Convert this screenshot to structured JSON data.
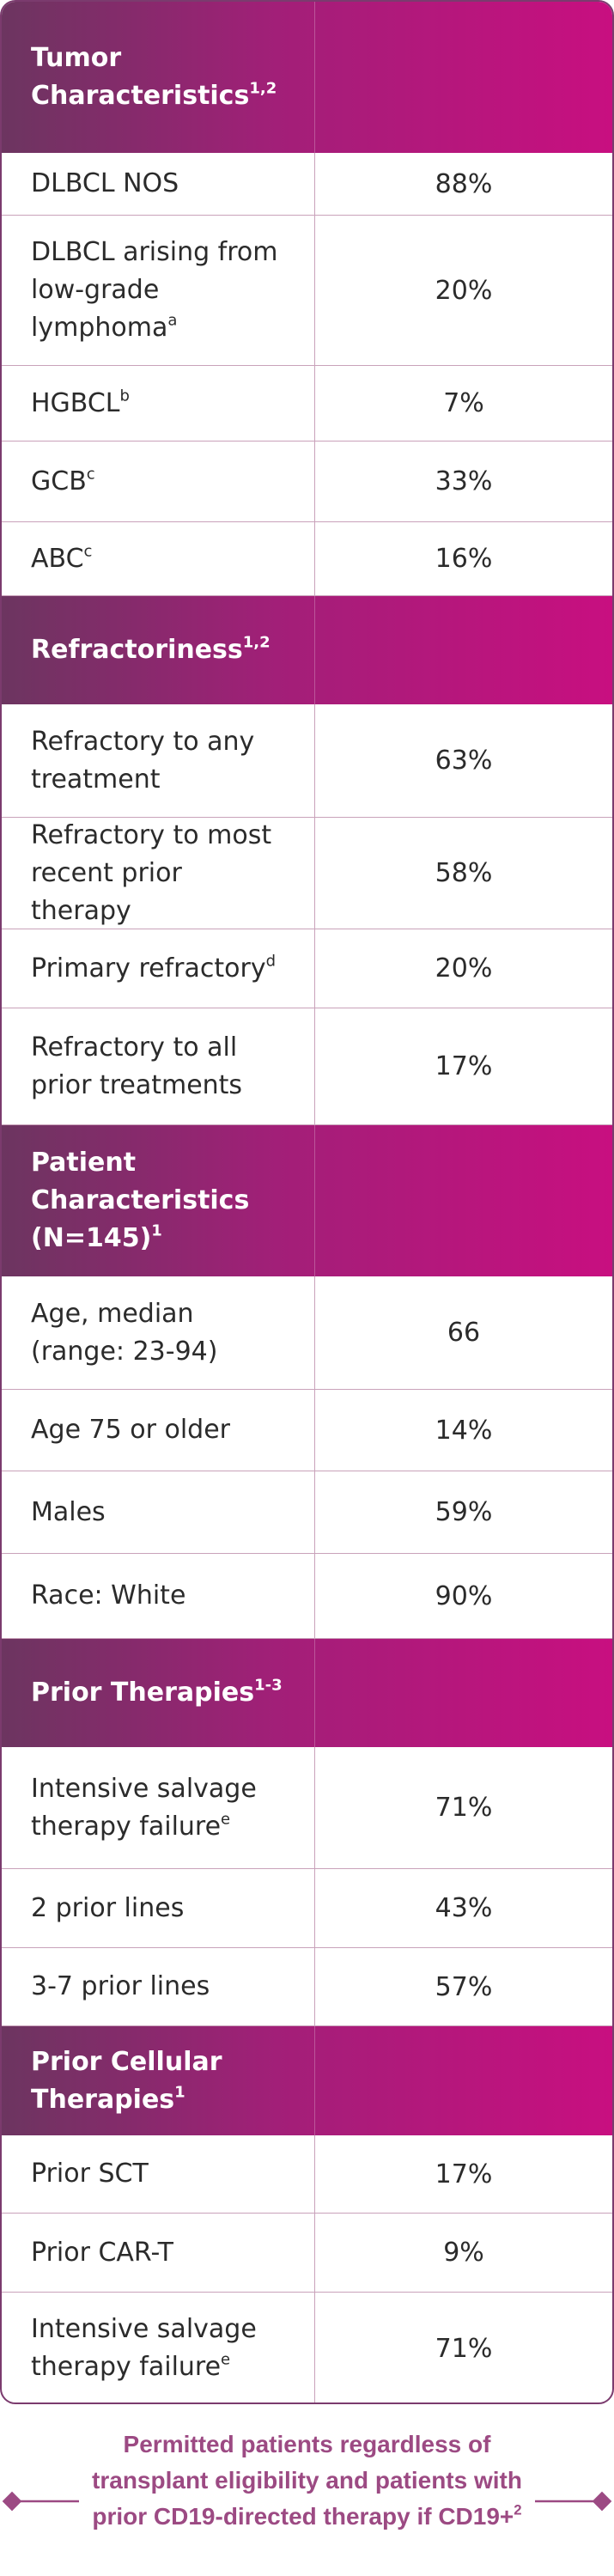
{
  "sections": [
    {
      "title": {
        "text": "Tumor Characteristics",
        "sup": "1,2"
      },
      "rows": [
        {
          "label": {
            "text": "DLBCL NOS"
          },
          "value": "88%"
        },
        {
          "label": {
            "text": "DLBCL arising from low-grade lymphoma",
            "sup": "a"
          },
          "value": "20%"
        },
        {
          "label": {
            "text": "HGBCL",
            "sup": "b"
          },
          "value": "7%"
        },
        {
          "label": {
            "text": "GCB",
            "sup": "c"
          },
          "value": "33%"
        },
        {
          "label": {
            "text": "ABC",
            "sup": "c"
          },
          "value": "16%"
        }
      ]
    },
    {
      "title": {
        "text": "Refractoriness",
        "sup": "1,2"
      },
      "rows": [
        {
          "label": {
            "text": "Refractory to any treatment"
          },
          "value": "63%"
        },
        {
          "label": {
            "text": "Refractory to most recent prior therapy"
          },
          "value": "58%"
        },
        {
          "label": {
            "text": "Primary refractory",
            "sup": "d"
          },
          "value": "20%"
        },
        {
          "label": {
            "text": "Refractory to all prior treatments"
          },
          "value": "17%"
        }
      ]
    },
    {
      "title": {
        "text": "Patient Characteristics (N=145)",
        "sup": "1"
      },
      "rows": [
        {
          "label": {
            "text": "Age, median (range: 23-94)"
          },
          "value": "66"
        },
        {
          "label": {
            "text": "Age 75 or older"
          },
          "value": "14%"
        },
        {
          "label": {
            "text": "Males"
          },
          "value": "59%"
        },
        {
          "label": {
            "text": "Race: White"
          },
          "value": "90%"
        }
      ]
    },
    {
      "title": {
        "text": "Prior Therapies",
        "sup": "1-3"
      },
      "rows": [
        {
          "label": {
            "text": "Intensive salvage therapy failure",
            "sup": "e"
          },
          "value": "71%"
        },
        {
          "label": {
            "text": "2 prior lines"
          },
          "value": "43%"
        },
        {
          "label": {
            "text": "3-7 prior lines"
          },
          "value": "57%"
        }
      ]
    },
    {
      "title": {
        "text": "Prior Cellular Therapies",
        "sup": "1"
      },
      "rows": [
        {
          "label": {
            "text": "Prior SCT"
          },
          "value": "17%"
        },
        {
          "label": {
            "text": "Prior CAR-T"
          },
          "value": "9%"
        },
        {
          "label": {
            "text": "Intensive salvage therapy failure",
            "sup": "e"
          },
          "value": "71%"
        }
      ]
    }
  ],
  "footnote": {
    "text": "Permitted patients regardless of transplant eligibility and patients with prior CD19-directed therapy if CD19+",
    "sup": "2"
  }
}
